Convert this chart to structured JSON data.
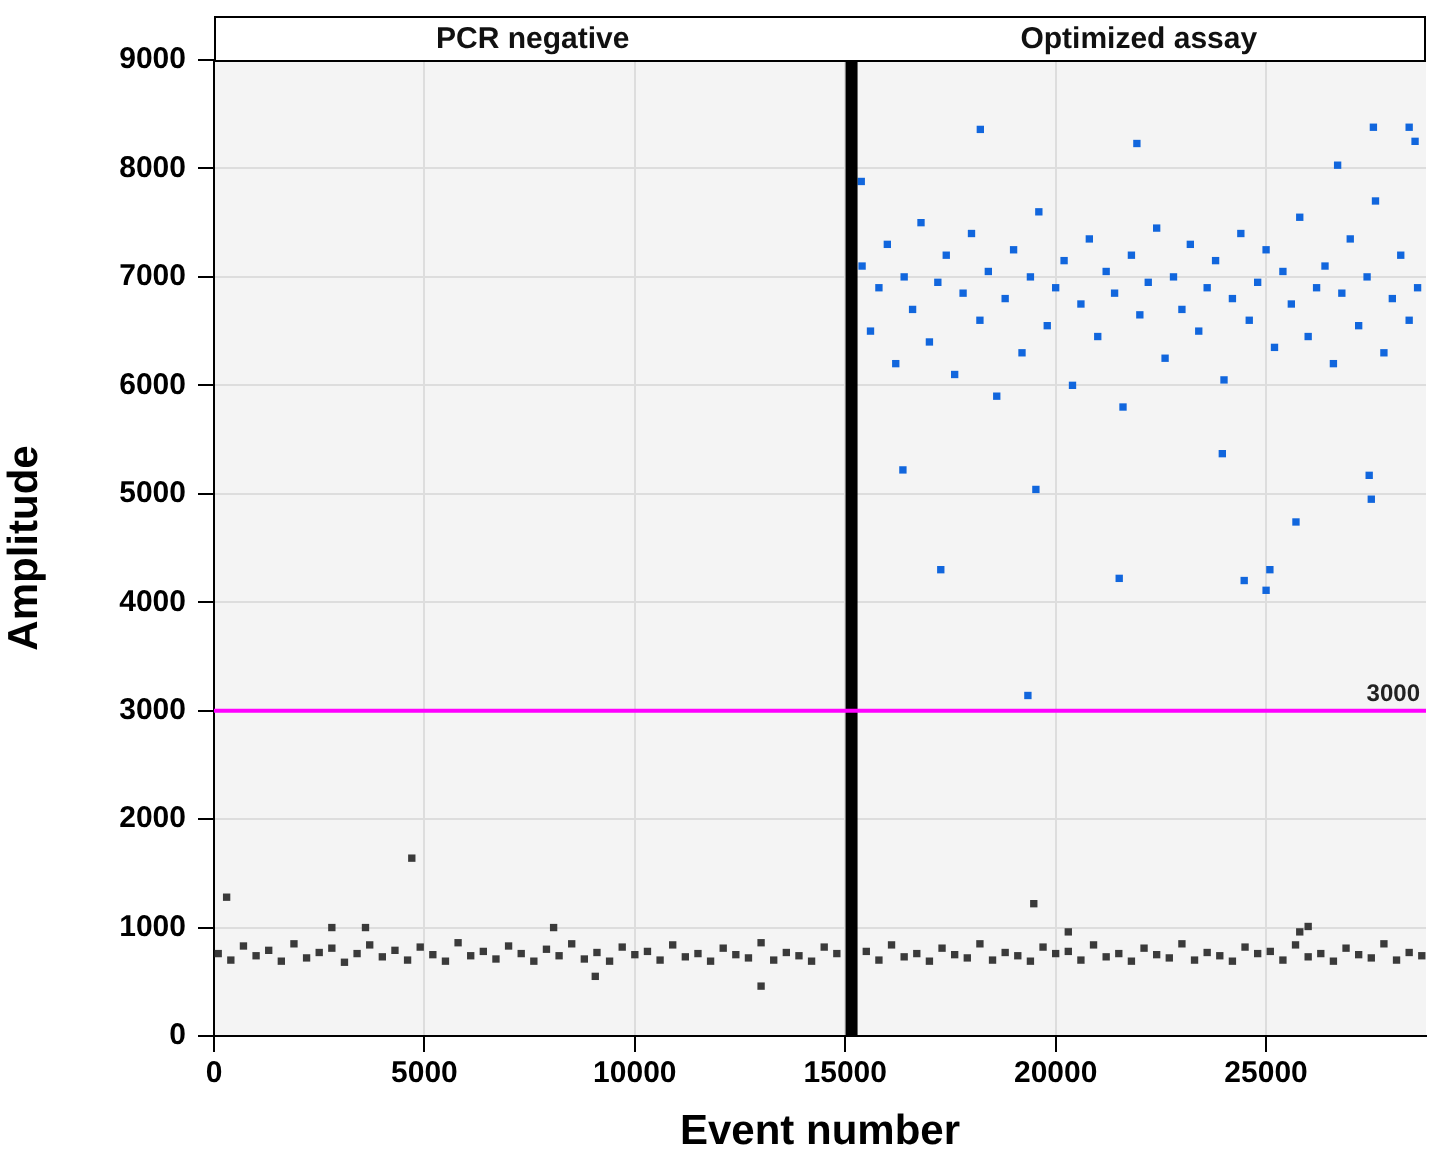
{
  "chart_data": {
    "type": "scatter",
    "xlabel": "Event number",
    "ylabel": "Amplitude",
    "annotations": [
      "PCR negative",
      "Optimized assay"
    ],
    "xlim": [
      0,
      28800
    ],
    "xticks": [
      0,
      5000,
      10000,
      15000,
      20000,
      25000
    ],
    "ylim": [
      0,
      9000
    ],
    "yticks": [
      0,
      1000,
      2000,
      3000,
      4000,
      5000,
      6000,
      7000,
      8000,
      9000
    ],
    "grid": true,
    "legend": false,
    "marker": "square",
    "ref_lines": [
      {
        "axis": "x",
        "value": 15150,
        "color": "#000000"
      },
      {
        "axis": "y",
        "value": 3000,
        "label": "3000",
        "color": "#ff00ff"
      }
    ],
    "series": [
      {
        "color": "#3a3a3a",
        "x": [
          100,
          400,
          700,
          1000,
          1300,
          1600,
          1900,
          2200,
          2500,
          2800,
          3100,
          3400,
          3700,
          4000,
          4300,
          4600,
          4900,
          5200,
          5500,
          5800,
          6100,
          6400,
          6700,
          7000,
          7300,
          7600,
          7900,
          8200,
          8500,
          8800,
          9100,
          9400,
          9700,
          10000,
          10300,
          10600,
          10900,
          11200,
          11500,
          11800,
          12100,
          12400,
          12700,
          13000,
          13300,
          13600,
          13900,
          14200,
          14500,
          14800,
          15500,
          15800,
          16100,
          16400,
          16700,
          17000,
          17300,
          17600,
          17900,
          18200,
          18500,
          18800,
          19100,
          19400,
          19700,
          20000,
          20300,
          20600,
          20900,
          21200,
          21500,
          21800,
          22100,
          22400,
          22700,
          23000,
          23300,
          23600,
          23900,
          24200,
          24500,
          24800,
          25100,
          25400,
          25700,
          26000,
          26300,
          26600,
          26900,
          27200,
          27500,
          27800,
          28100,
          28400,
          28700,
          300,
          4700,
          2800,
          3600,
          8070,
          9060,
          13000,
          19480,
          20300,
          26000,
          25800
        ],
        "values": [
          760,
          700,
          830,
          740,
          790,
          690,
          850,
          720,
          770,
          810,
          680,
          760,
          840,
          730,
          790,
          700,
          820,
          750,
          690,
          860,
          740,
          780,
          710,
          830,
          760,
          690,
          800,
          740,
          850,
          710,
          770,
          690,
          820,
          750,
          780,
          700,
          840,
          730,
          760,
          690,
          810,
          750,
          720,
          860,
          700,
          770,
          740,
          690,
          820,
          760,
          780,
          700,
          840,
          730,
          760,
          690,
          810,
          750,
          720,
          850,
          700,
          770,
          740,
          690,
          820,
          760,
          780,
          700,
          840,
          730,
          760,
          690,
          810,
          750,
          720,
          850,
          700,
          770,
          740,
          690,
          820,
          760,
          780,
          700,
          840,
          730,
          760,
          690,
          810,
          750,
          720,
          850,
          700,
          770,
          740,
          1280,
          1640,
          1000,
          1000,
          1000,
          550,
          460,
          1220,
          960,
          1010,
          960
        ]
      },
      {
        "color": "#1166dd",
        "x": [
          15400,
          15600,
          15800,
          16000,
          16200,
          16400,
          16600,
          16800,
          17000,
          17200,
          17400,
          17600,
          17800,
          18000,
          18200,
          18400,
          18600,
          18800,
          19000,
          19200,
          19400,
          19600,
          19800,
          20000,
          20200,
          20400,
          20600,
          20800,
          21000,
          21200,
          21400,
          21600,
          21800,
          22000,
          22200,
          22400,
          22600,
          22800,
          23000,
          23200,
          23400,
          23600,
          23800,
          24000,
          24200,
          24400,
          24600,
          24800,
          25000,
          25200,
          25400,
          25600,
          25800,
          26000,
          26200,
          26400,
          26600,
          26800,
          27000,
          27200,
          27400,
          27600,
          27800,
          28000,
          28200,
          28400,
          28600,
          18210,
          21930,
          27550,
          28400,
          28540,
          15380,
          26700,
          17270,
          21510,
          24480,
          25000,
          25090,
          25710,
          16370,
          19530,
          27450,
          27500,
          23960,
          19340
        ],
        "values": [
          7100,
          6500,
          6900,
          7300,
          6200,
          7000,
          6700,
          7500,
          6400,
          6950,
          7200,
          6100,
          6850,
          7400,
          6600,
          7050,
          5900,
          6800,
          7250,
          6300,
          7000,
          7600,
          6550,
          6900,
          7150,
          6000,
          6750,
          7350,
          6450,
          7050,
          6850,
          5800,
          7200,
          6650,
          6950,
          7450,
          6250,
          7000,
          6700,
          7300,
          6500,
          6900,
          7150,
          6050,
          6800,
          7400,
          6600,
          6950,
          7250,
          6350,
          7050,
          6750,
          7550,
          6450,
          6900,
          7100,
          6200,
          6850,
          7350,
          6550,
          7000,
          7700,
          6300,
          6800,
          7200,
          6600,
          6900,
          8360,
          8230,
          8380,
          8380,
          8250,
          7880,
          8030,
          4300,
          4220,
          4200,
          4110,
          4300,
          4740,
          5220,
          5040,
          5170,
          4950,
          5370,
          3140
        ]
      }
    ]
  }
}
